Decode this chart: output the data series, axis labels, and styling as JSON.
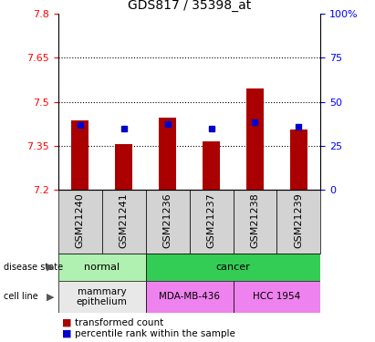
{
  "title": "GDS817 / 35398_at",
  "samples": [
    "GSM21240",
    "GSM21241",
    "GSM21236",
    "GSM21237",
    "GSM21238",
    "GSM21239"
  ],
  "red_values": [
    7.435,
    7.355,
    7.445,
    7.365,
    7.545,
    7.405
  ],
  "blue_values": [
    7.42,
    7.41,
    7.425,
    7.41,
    7.43,
    7.415
  ],
  "y_min": 7.2,
  "y_max": 7.8,
  "y_ticks": [
    7.2,
    7.35,
    7.5,
    7.65,
    7.8
  ],
  "y_right_ticks": [
    0,
    25,
    50,
    75,
    100
  ],
  "bar_color": "#aa0000",
  "blue_color": "#0000cc",
  "normal_color": "#b0f0b0",
  "cancer_color": "#33cc55",
  "mammary_color": "#e8e8e8",
  "mda_color": "#ee82ee",
  "hcc_color": "#ee82ee",
  "xtick_bg": "#d3d3d3",
  "title_fontsize": 10,
  "tick_fontsize": 8,
  "label_fontsize": 8,
  "table_fontsize": 8,
  "legend_fontsize": 7.5
}
